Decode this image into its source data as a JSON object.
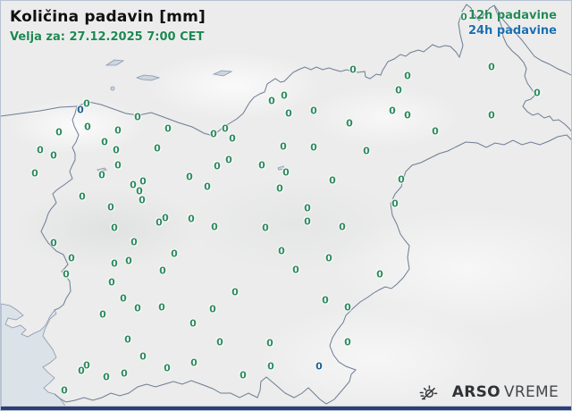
{
  "header": {
    "title": "Količina padavin [mm]",
    "valid_time": "Velja za: 27.12.2025 7:00 CET"
  },
  "legend": {
    "item_12h": "12h padavine",
    "item_24h": "24h padavine"
  },
  "logo": {
    "brand_bold": "ARSO",
    "brand_light": "VREME"
  },
  "colors": {
    "green_12h": "#2e8b5f",
    "blue_24h": "#21618f",
    "legend_green": "#258a58",
    "legend_blue": "#1c6fb0",
    "subtitle_green": "#1e8852",
    "title_black": "#101010",
    "border_line": "#6e7b96",
    "sea": "#dbe2e8",
    "land": "#ebeceb",
    "bottom_bar": "#2c3e78"
  },
  "stations": {
    "value": "0",
    "points_12h": [
      [
        96,
        115
      ],
      [
        153,
        130
      ],
      [
        187,
        143
      ],
      [
        97,
        141
      ],
      [
        65,
        147
      ],
      [
        131,
        145
      ],
      [
        116,
        158
      ],
      [
        44,
        167
      ],
      [
        129,
        167
      ],
      [
        59,
        173
      ],
      [
        175,
        165
      ],
      [
        131,
        184
      ],
      [
        38,
        193
      ],
      [
        113,
        195
      ],
      [
        211,
        197
      ],
      [
        148,
        206
      ],
      [
        159,
        202
      ],
      [
        394,
        77
      ],
      [
        303,
        112
      ],
      [
        317,
        106
      ],
      [
        322,
        126
      ],
      [
        350,
        123
      ],
      [
        390,
        137
      ],
      [
        238,
        149
      ],
      [
        251,
        143
      ],
      [
        259,
        154
      ],
      [
        316,
        163
      ],
      [
        350,
        164
      ],
      [
        409,
        168
      ],
      [
        255,
        178
      ],
      [
        242,
        185
      ],
      [
        292,
        184
      ],
      [
        319,
        192
      ],
      [
        371,
        201
      ],
      [
        231,
        208
      ],
      [
        312,
        210
      ],
      [
        549,
        74
      ],
      [
        455,
        84
      ],
      [
        445,
        100
      ],
      [
        600,
        103
      ],
      [
        438,
        123
      ],
      [
        455,
        128
      ],
      [
        549,
        128
      ],
      [
        486,
        146
      ],
      [
        448,
        200
      ],
      [
        155,
        213
      ],
      [
        158,
        223
      ],
      [
        91,
        219
      ],
      [
        123,
        231
      ],
      [
        177,
        248
      ],
      [
        184,
        243
      ],
      [
        213,
        244
      ],
      [
        127,
        254
      ],
      [
        149,
        270
      ],
      [
        59,
        271
      ],
      [
        194,
        283
      ],
      [
        79,
        288
      ],
      [
        127,
        294
      ],
      [
        143,
        291
      ],
      [
        181,
        302
      ],
      [
        73,
        306
      ],
      [
        124,
        315
      ],
      [
        137,
        333
      ],
      [
        343,
        232
      ],
      [
        343,
        247
      ],
      [
        382,
        253
      ],
      [
        239,
        253
      ],
      [
        296,
        254
      ],
      [
        314,
        280
      ],
      [
        367,
        288
      ],
      [
        330,
        301
      ],
      [
        262,
        326
      ],
      [
        363,
        335
      ],
      [
        441,
        227
      ],
      [
        424,
        306
      ],
      [
        114,
        351
      ],
      [
        153,
        344
      ],
      [
        180,
        343
      ],
      [
        215,
        361
      ],
      [
        142,
        379
      ],
      [
        159,
        398
      ],
      [
        96,
        408
      ],
      [
        90,
        414
      ],
      [
        118,
        421
      ],
      [
        138,
        417
      ],
      [
        186,
        411
      ],
      [
        216,
        405
      ],
      [
        71,
        436
      ],
      [
        237,
        345
      ],
      [
        388,
        343
      ],
      [
        245,
        382
      ],
      [
        301,
        383
      ],
      [
        271,
        419
      ],
      [
        302,
        409
      ],
      [
        388,
        382
      ],
      [
        518,
        18
      ]
    ],
    "points_24h": [
      [
        89,
        122
      ],
      [
        356,
        409
      ]
    ]
  }
}
